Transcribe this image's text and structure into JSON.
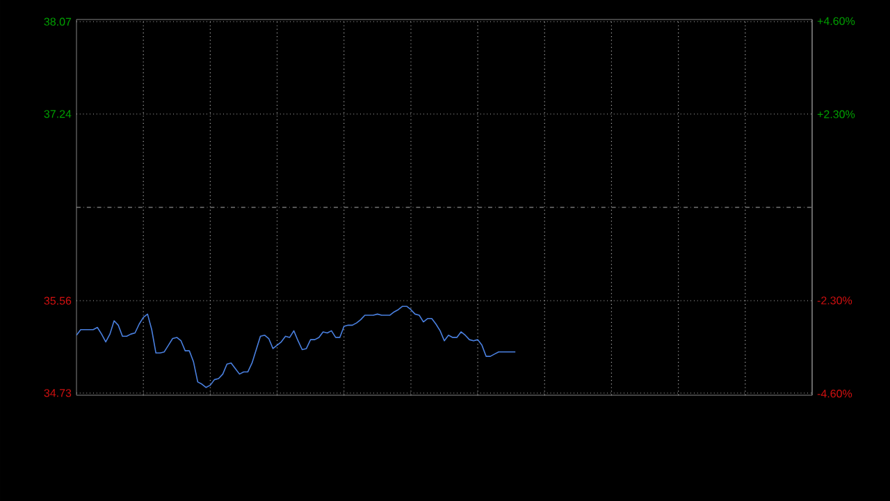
{
  "chart_data": {
    "type": "line",
    "categories": [
      null,
      null,
      null,
      null,
      null,
      null,
      null,
      null,
      null,
      null,
      null,
      null,
      null,
      null,
      null,
      null,
      null,
      null,
      null,
      null,
      null,
      null,
      null,
      null,
      null,
      null,
      null,
      null,
      null,
      null,
      null,
      null,
      null,
      null,
      null,
      null,
      null,
      null,
      null,
      null,
      null,
      null,
      null,
      null,
      null,
      null,
      null,
      null,
      null,
      null,
      null,
      null,
      null,
      null,
      null,
      null,
      null,
      null,
      null,
      null,
      null,
      null,
      null,
      null,
      null,
      null,
      null,
      null,
      null,
      null,
      null,
      null,
      null,
      null,
      null,
      null,
      null,
      null,
      null,
      null,
      null,
      null,
      null,
      null,
      null,
      null,
      null,
      null,
      null,
      null,
      null,
      null,
      null,
      null,
      null,
      null,
      null,
      null,
      null,
      null,
      null,
      null,
      null,
      null,
      null,
      null,
      null,
      null,
      null,
      null,
      null,
      null,
      null,
      null,
      null,
      null,
      null,
      null,
      null,
      null,
      null,
      null,
      null,
      null,
      null,
      null,
      null,
      null,
      null,
      null,
      null,
      null,
      null,
      null,
      null,
      null,
      null,
      null,
      null,
      null,
      null,
      null,
      null,
      null,
      null,
      null,
      null,
      null,
      null,
      null,
      null,
      null,
      null,
      null,
      null,
      null,
      null,
      null,
      null,
      null,
      null,
      null,
      null,
      null,
      null,
      null,
      null,
      null,
      null,
      null,
      null,
      null,
      null,
      null,
      null,
      null,
      null
    ],
    "ylim": [
      34.71,
      38.09
    ],
    "yticks": [
      34.73,
      35.56,
      37.24,
      38.07
    ],
    "y2lim": [
      -4.64,
      4.64
    ],
    "y2ticks": [
      {
        "value": -4.6,
        "label": "-4.60%"
      },
      {
        "value": -2.3,
        "label": "-2.30%"
      },
      {
        "value": 2.3,
        "label": "+2.30%"
      },
      {
        "value": 4.6,
        "label": "+4.60%"
      }
    ],
    "grid": true,
    "ref_lines": [
      {
        "axis": "y",
        "value": 36.4,
        "color": "#aaaaaa",
        "line_style": "dashed"
      }
    ],
    "series": [
      {
        "color": "#4a80e0",
        "values": [
          35.25,
          35.3,
          35.3,
          35.3,
          35.3,
          35.32,
          35.26,
          35.19,
          35.26,
          35.38,
          35.34,
          35.24,
          35.24,
          35.26,
          35.27,
          35.35,
          35.41,
          35.44,
          35.3,
          35.09,
          35.09,
          35.1,
          35.16,
          35.22,
          35.23,
          35.2,
          35.11,
          35.11,
          35.01,
          34.83,
          34.81,
          34.78,
          34.8,
          34.85,
          34.86,
          34.9,
          34.99,
          35.0,
          34.95,
          34.9,
          34.92,
          34.92,
          35.0,
          35.12,
          35.24,
          35.25,
          35.22,
          35.13,
          35.16,
          35.19,
          35.24,
          35.23,
          35.29,
          35.2,
          35.12,
          35.13,
          35.21,
          35.21,
          35.23,
          35.28,
          35.27,
          35.29,
          35.23,
          35.23,
          35.33,
          35.34,
          35.34,
          35.36,
          35.39,
          35.43,
          35.43,
          35.43,
          35.44,
          35.43,
          35.43,
          35.43,
          35.46,
          35.48,
          35.51,
          35.51,
          35.48,
          35.44,
          35.43,
          35.37,
          35.4,
          35.4,
          35.35,
          35.29,
          35.2,
          35.25,
          35.23,
          35.23,
          35.28,
          35.25,
          35.21,
          35.2,
          35.21,
          35.16,
          35.06,
          35.06,
          35.08,
          35.1,
          35.1,
          35.1,
          35.1,
          35.1,
          null,
          null,
          null,
          null,
          null,
          null,
          null,
          null,
          null,
          null,
          null,
          null,
          null,
          null,
          null,
          null,
          null,
          null,
          null,
          null,
          null,
          null,
          null,
          null,
          null,
          null,
          null,
          null,
          null,
          null,
          null,
          null,
          null,
          null,
          null,
          null,
          null,
          null,
          null,
          null,
          null,
          null,
          null,
          null,
          null,
          null,
          null,
          null,
          null,
          null,
          null,
          null,
          null,
          null,
          null,
          null,
          null,
          null,
          null,
          null,
          null,
          null,
          null,
          null,
          null,
          null,
          null,
          null,
          null,
          null,
          null
        ]
      }
    ]
  }
}
